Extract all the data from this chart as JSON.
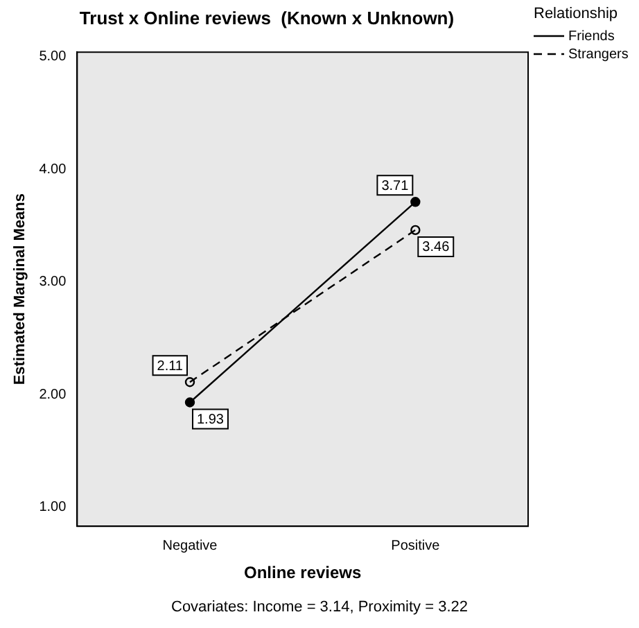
{
  "chart_data": {
    "type": "line",
    "title": "Trust x Online reviews  (Known x Unknown)",
    "xlabel": "Online reviews",
    "ylabel": "Estimated Marginal Means",
    "legend_title": "Relationship",
    "categories": [
      "Negative",
      "Positive"
    ],
    "series": [
      {
        "name": "Friends",
        "color": "#000000",
        "values": [
          1.93,
          3.71
        ],
        "line_style": "solid",
        "marker": "circle"
      },
      {
        "name": "Strangers",
        "color": "#000000",
        "values": [
          2.11,
          3.46
        ],
        "line_style": "dashed",
        "marker": "circle"
      }
    ],
    "ylim": [
      0.83,
      5.04
    ],
    "yticks": [
      {
        "value": 1,
        "label": "1.00"
      },
      {
        "value": 2,
        "label": "2.00"
      },
      {
        "value": 3,
        "label": "3.00"
      },
      {
        "value": 4,
        "label": "4.00"
      },
      {
        "value": 5,
        "label": "5.00"
      }
    ],
    "legend": "top right",
    "data_labels": true,
    "grid": false,
    "annotations": [
      "Covariates: Income = 3.14, Proximity = 3.22"
    ]
  }
}
